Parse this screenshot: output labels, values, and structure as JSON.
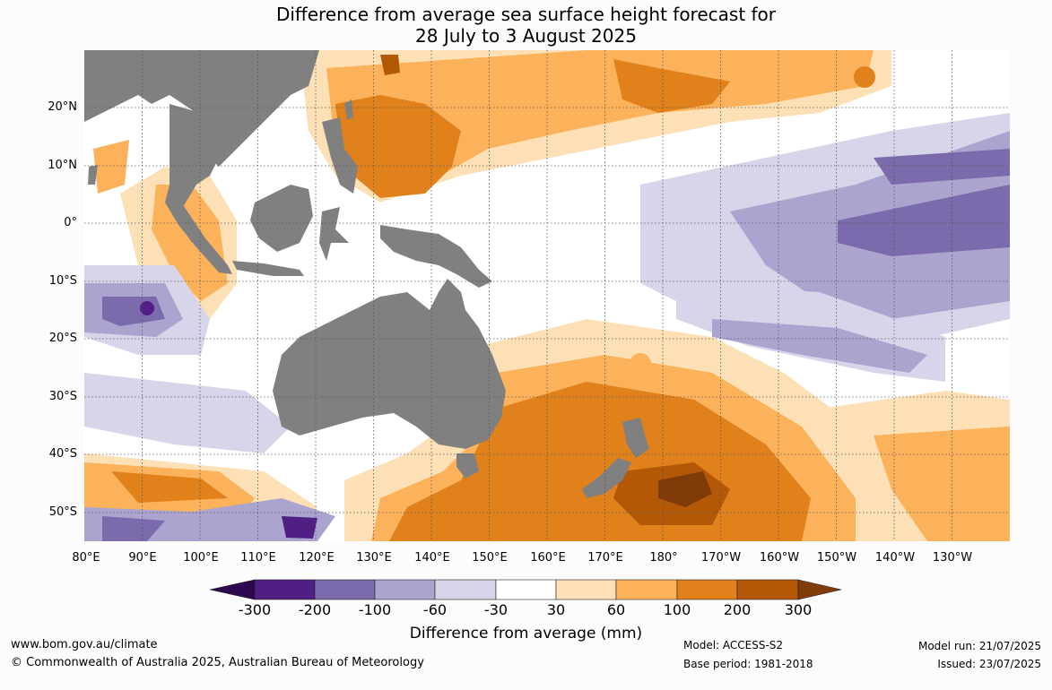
{
  "title": {
    "line1": "Difference from average sea surface height forecast for",
    "line2": "28 July to 3 August 2025"
  },
  "map": {
    "latitude_labels": [
      "20°N",
      "10°N",
      "0°",
      "10°S",
      "20°S",
      "30°S",
      "40°S",
      "50°S"
    ],
    "longitude_labels": [
      "80°E",
      "90°E",
      "100°E",
      "110°E",
      "120°E",
      "130°E",
      "140°E",
      "150°E",
      "160°E",
      "170°E",
      "180°",
      "170°W",
      "160°W",
      "150°W",
      "140°W",
      "130°W"
    ],
    "land_color": "#808080",
    "grid": "dotted"
  },
  "legend": {
    "title": "Difference from average (mm)",
    "ticks": [
      "-300",
      "-200",
      "-100",
      "-60",
      "-30",
      "30",
      "60",
      "100",
      "200",
      "300"
    ],
    "colors": {
      "below_-300": "#2d0850",
      "-300_-200": "#4f1f83",
      "-200_-100": "#7b6aac",
      "-100_-60": "#aba4cf",
      "-60_-30": "#d6d5ea",
      "-30_30": "#ffffff",
      "30_60": "#fee0b6",
      "60_100": "#fbb25a",
      "100_200": "#e0811c",
      "200_300": "#b35807",
      "above_300": "#7f3b08"
    }
  },
  "footer": {
    "url": "www.bom.gov.au/climate",
    "copyright": "© Commonwealth of Australia 2025, Australian Bureau of Meteorology",
    "model": "Model: ACCESS-S2",
    "base_period": "Base period: 1981-2018",
    "model_run": "Model run: 21/07/2025",
    "issued": "Issued: 23/07/2025"
  }
}
